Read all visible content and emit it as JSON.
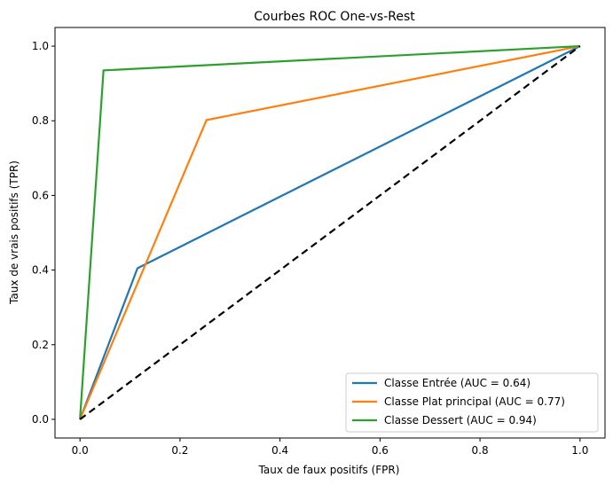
{
  "chart_data": {
    "type": "line",
    "title": "Courbes ROC One-vs-Rest",
    "xlabel": "Taux de faux positifs (FPR)",
    "ylabel": "Taux de vrais positifs (TPR)",
    "xlim": [
      -0.05,
      1.05
    ],
    "ylim": [
      -0.05,
      1.05
    ],
    "xticks": [
      "0.0",
      "0.2",
      "0.4",
      "0.6",
      "0.8",
      "1.0"
    ],
    "yticks": [
      "0.0",
      "0.2",
      "0.4",
      "0.6",
      "0.8",
      "1.0"
    ],
    "grid": false,
    "legend_position": "bottom-right",
    "series": [
      {
        "name": "Classe Entrée (AUC = 0.64)",
        "color": "#1f77b4",
        "x": [
          0.0,
          0.115,
          1.0
        ],
        "y": [
          0.0,
          0.405,
          1.0
        ]
      },
      {
        "name": "Classe Plat principal (AUC = 0.77)",
        "color": "#ff7f0e",
        "x": [
          0.0,
          0.253,
          1.0
        ],
        "y": [
          0.0,
          0.802,
          1.0
        ]
      },
      {
        "name": "Classe Dessert (AUC = 0.94)",
        "color": "#2ca02c",
        "x": [
          0.0,
          0.047,
          1.0
        ],
        "y": [
          0.0,
          0.935,
          1.0
        ]
      }
    ],
    "reference_line": {
      "x": [
        0.0,
        1.0
      ],
      "y": [
        0.0,
        1.0
      ],
      "color": "#000000",
      "style": "dashed"
    }
  }
}
